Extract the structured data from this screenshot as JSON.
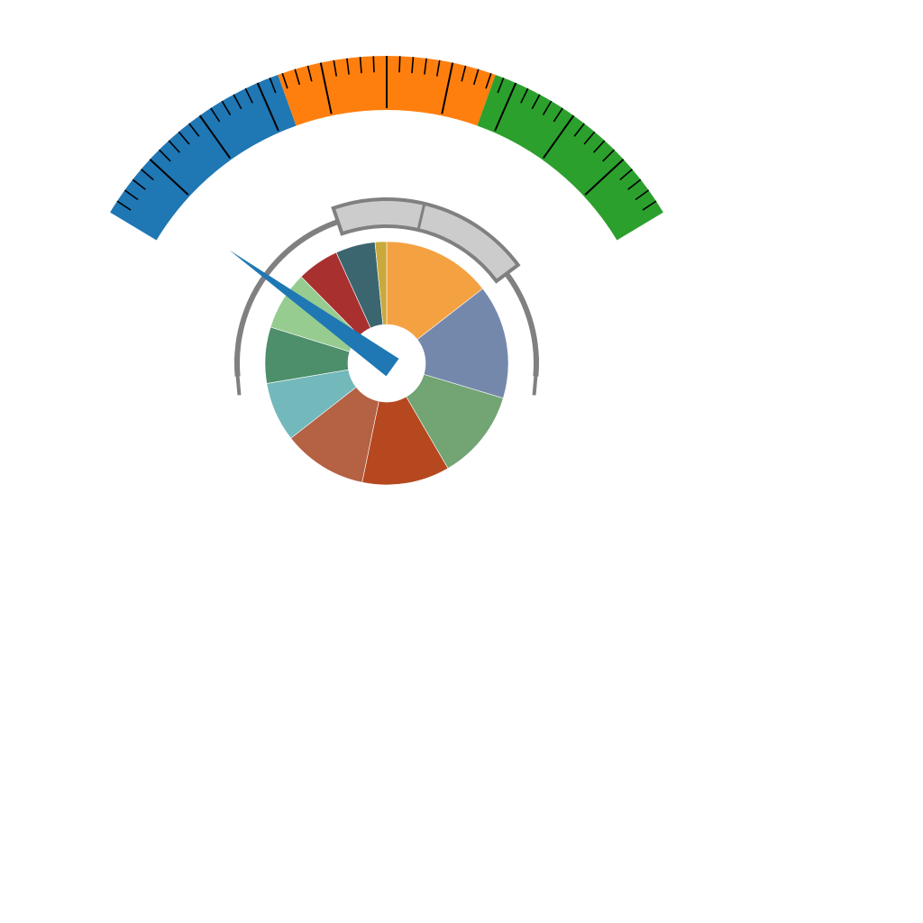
{
  "chart_data": [
    {
      "type": "gauge",
      "title": "",
      "range": [
        0,
        100
      ],
      "bands": [
        {
          "name": "",
          "from": 0,
          "to": 33.3,
          "color": "#1f77b4"
        },
        {
          "name": "",
          "from": 33.3,
          "to": 66.7,
          "color": "#ff7f0e"
        },
        {
          "name": "",
          "from": 66.7,
          "to": 100,
          "color": "#2ca02c"
        }
      ],
      "major_ticks": 10,
      "minor_per_major": 5,
      "tick_labels": "none",
      "needle_value": 4,
      "needle_color": "#1f77b4"
    },
    {
      "type": "pie",
      "style": "donut",
      "title": "",
      "legend": "none",
      "values": [
        13.2,
        13.8,
        10.9,
        10.6,
        10.2,
        7.2,
        6.8,
        7.1,
        5.1,
        4.8,
        1.4
      ],
      "colors": [
        "#f4a142",
        "#7488ab",
        "#72a474",
        "#b5481f",
        "#b46144",
        "#73b8bb",
        "#4d8f6b",
        "#96cc90",
        "#a8312f",
        "#3b6670",
        "#c9a93c"
      ],
      "direction": "clockwise",
      "start": "top"
    },
    {
      "type": "gauge-frame",
      "range": [
        0,
        100
      ],
      "highlight_range": [
        40,
        78
      ],
      "highlight_color": "#cccccc",
      "track_color": "#808080",
      "divider_value": 57
    }
  ]
}
